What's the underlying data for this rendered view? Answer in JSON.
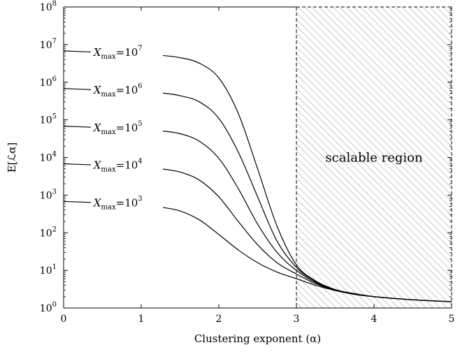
{
  "chart_data": {
    "type": "line",
    "xlabel": "Clustering exponent (α)",
    "ylabel": "E[ℒα]",
    "xlim": [
      0,
      5
    ],
    "ylim": [
      1,
      100000000
    ],
    "yscale": "log",
    "grid": false,
    "x_ticks": [
      "0",
      "1",
      "2",
      "3",
      "4",
      "5"
    ],
    "y_ticks": [
      {
        "base": "10",
        "exp": "0"
      },
      {
        "base": "10",
        "exp": "1"
      },
      {
        "base": "10",
        "exp": "2"
      },
      {
        "base": "10",
        "exp": "3"
      },
      {
        "base": "10",
        "exp": "4"
      },
      {
        "base": "10",
        "exp": "5"
      },
      {
        "base": "10",
        "exp": "6"
      },
      {
        "base": "10",
        "exp": "7"
      },
      {
        "base": "10",
        "exp": "8"
      }
    ],
    "x": [
      0,
      0.25,
      0.5,
      0.75,
      1.0,
      1.25,
      1.5,
      1.75,
      2.0,
      2.25,
      2.5,
      2.75,
      3.0,
      3.25,
      3.5,
      3.75,
      4.0,
      4.25,
      4.5,
      4.75,
      5.0
    ],
    "series": [
      {
        "name": "X_max=10^7",
        "label": {
          "var": "X",
          "sub": "max",
          "eq": "=10",
          "exp": "7"
        },
        "values": [
          6800000,
          6500000,
          6200000,
          5900000,
          5600000,
          5200000,
          4500000,
          3200000,
          1300000,
          150000,
          5000,
          150,
          14,
          5.2,
          3.1,
          2.4,
          2.0,
          1.8,
          1.65,
          1.55,
          1.47
        ]
      },
      {
        "name": "X_max=10^6",
        "label": {
          "var": "X",
          "sub": "max",
          "eq": "=10",
          "exp": "6"
        },
        "values": [
          680000,
          650000,
          620000,
          590000,
          560000,
          520000,
          440000,
          300000,
          110000,
          14000,
          900,
          60,
          12,
          5.0,
          3.05,
          2.4,
          2.0,
          1.8,
          1.65,
          1.55,
          1.47
        ]
      },
      {
        "name": "X_max=10^5",
        "label": {
          "var": "X",
          "sub": "max",
          "eq": "=10",
          "exp": "5"
        },
        "values": [
          68000,
          65000,
          62000,
          59000,
          56000,
          51000,
          43000,
          27000,
          9500,
          1500,
          170,
          30,
          10,
          4.7,
          3.0,
          2.35,
          2.0,
          1.8,
          1.65,
          1.55,
          1.47
        ]
      },
      {
        "name": "X_max=10^4",
        "label": {
          "var": "X",
          "sub": "max",
          "eq": "=10",
          "exp": "4"
        },
        "values": [
          6800,
          6500,
          6200,
          5900,
          5500,
          5000,
          4100,
          2500,
          900,
          200,
          48,
          16,
          8,
          4.4,
          2.95,
          2.3,
          2.0,
          1.8,
          1.65,
          1.55,
          1.47
        ]
      },
      {
        "name": "X_max=10^3",
        "label": {
          "var": "X",
          "sub": "max",
          "eq": "=10",
          "exp": "3"
        },
        "values": [
          680,
          650,
          620,
          590,
          550,
          480,
          380,
          220,
          90,
          35,
          16,
          9,
          6,
          4.0,
          2.9,
          2.3,
          2.0,
          1.8,
          1.65,
          1.55,
          1.47
        ]
      }
    ],
    "annotation": {
      "text": "scalable region",
      "x_range": [
        3,
        5
      ],
      "style": "hatched"
    }
  }
}
